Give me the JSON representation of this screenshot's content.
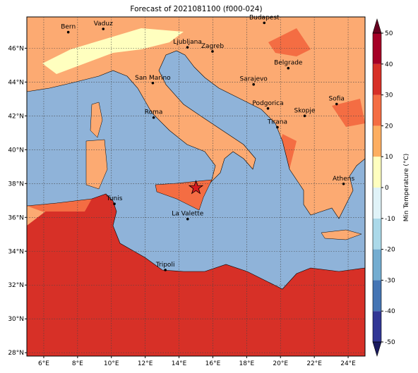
{
  "title": "Forecast of 2021081100 (f000-024)",
  "map": {
    "xlim": [
      5,
      25
    ],
    "ylim": [
      27.8,
      47.85
    ],
    "xticks": [
      {
        "value": 6,
        "label": "6°E"
      },
      {
        "value": 8,
        "label": "8°E"
      },
      {
        "value": 10,
        "label": "10°E"
      },
      {
        "value": 12,
        "label": "12°E"
      },
      {
        "value": 14,
        "label": "14°E"
      },
      {
        "value": 16,
        "label": "16°E"
      },
      {
        "value": 18,
        "label": "18°E"
      },
      {
        "value": 20,
        "label": "20°E"
      },
      {
        "value": 22,
        "label": "22°E"
      },
      {
        "value": 24,
        "label": "24°E"
      }
    ],
    "yticks": [
      {
        "value": 28,
        "label": "28°N"
      },
      {
        "value": 30,
        "label": "30°N"
      },
      {
        "value": 32,
        "label": "32°N"
      },
      {
        "value": 34,
        "label": "34°N"
      },
      {
        "value": 36,
        "label": "36°N"
      },
      {
        "value": 38,
        "label": "38°N"
      },
      {
        "value": 40,
        "label": "40°N"
      },
      {
        "value": 42,
        "label": "42°N"
      },
      {
        "value": 44,
        "label": "44°N"
      },
      {
        "value": 46,
        "label": "46°N"
      }
    ],
    "grid": true,
    "cities": [
      {
        "name": "Bern",
        "lon": 7.45,
        "lat": 46.95
      },
      {
        "name": "Vaduz",
        "lon": 9.52,
        "lat": 47.14
      },
      {
        "name": "Budapest",
        "lon": 19.04,
        "lat": 47.5
      },
      {
        "name": "Ljubljana",
        "lon": 14.5,
        "lat": 46.05
      },
      {
        "name": "Zagreb",
        "lon": 15.98,
        "lat": 45.81
      },
      {
        "name": "Belgrade",
        "lon": 20.46,
        "lat": 44.82
      },
      {
        "name": "Sarajevo",
        "lon": 18.41,
        "lat": 43.86
      },
      {
        "name": "San Marino",
        "lon": 12.45,
        "lat": 43.94
      },
      {
        "name": "Sofia",
        "lon": 23.32,
        "lat": 42.7
      },
      {
        "name": "Podgorica",
        "lon": 19.26,
        "lat": 42.44
      },
      {
        "name": "Skopje",
        "lon": 21.43,
        "lat": 42.0
      },
      {
        "name": "Roma",
        "lon": 12.5,
        "lat": 41.9
      },
      {
        "name": "Tirana",
        "lon": 19.82,
        "lat": 41.33
      },
      {
        "name": "Athens",
        "lon": 23.73,
        "lat": 37.98
      },
      {
        "name": "Tunis",
        "lon": 10.18,
        "lat": 36.8
      },
      {
        "name": "La Valette",
        "lon": 14.51,
        "lat": 35.9
      },
      {
        "name": "Tripoli",
        "lon": 13.19,
        "lat": 32.89
      }
    ],
    "star": {
      "lon": 15.0,
      "lat": 37.75
    }
  },
  "colorbar": {
    "label": "Min Temperature (°C)",
    "lim": [
      -50,
      50
    ],
    "ticks": [
      -50,
      -40,
      -30,
      -20,
      -10,
      0,
      10,
      20,
      30,
      40,
      50
    ],
    "colors": [
      "#313695",
      "#4575b4",
      "#74add1",
      "#abd9e9",
      "#e0f3f8",
      "#ffffbf",
      "#fdae61",
      "#f46d43",
      "#d73027",
      "#a50026"
    ],
    "under": "#1a1a5e",
    "over": "#67001f"
  }
}
